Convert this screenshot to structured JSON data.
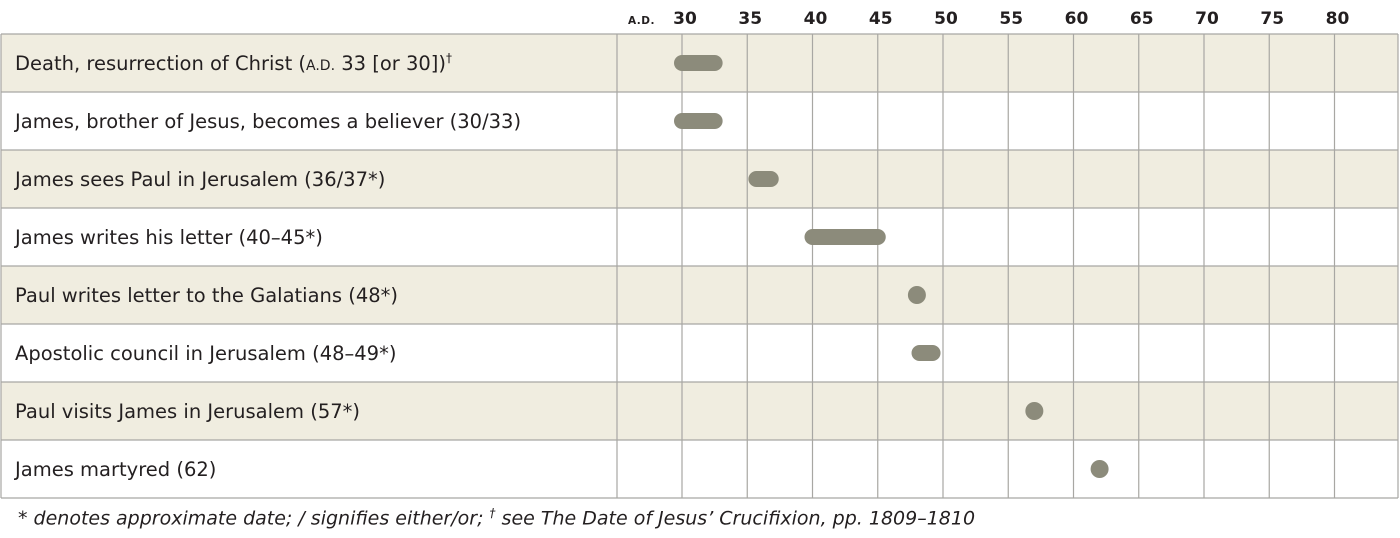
{
  "chart_data": {
    "type": "timeline",
    "axis_label": "A.D.",
    "ticks": [
      30,
      35,
      40,
      45,
      50,
      55,
      60,
      65,
      70,
      75,
      80
    ],
    "events": [
      {
        "label": "Death, resurrection of Christ (",
        "label_sc": "A.D.",
        "label_rest": " 33 [or 30])",
        "label_sup": "†",
        "start": 30,
        "end": 32.5
      },
      {
        "label": "James, brother of Jesus, becomes a believer (30/33)",
        "start": 30,
        "end": 32.5
      },
      {
        "label": "James sees Paul in Jerusalem (36/37*)",
        "start": 35.7,
        "end": 36.8
      },
      {
        "label": "James writes his letter (40–45*)",
        "start": 40,
        "end": 45
      },
      {
        "label": "Paul writes letter to the Galatians (48*)",
        "start": 48,
        "end": 48
      },
      {
        "label": "Apostolic council in Jerusalem (48–49*)",
        "start": 48.2,
        "end": 49.2
      },
      {
        "label": "Paul visits James in Jerusalem (57*)",
        "start": 57,
        "end": 57
      },
      {
        "label": "James martyred (62)",
        "start": 62,
        "end": 62
      }
    ],
    "colors": {
      "stripe": "#f0ede0",
      "bar": "#8c8b7b",
      "grid": "#a8a7a3"
    }
  },
  "footnote": {
    "part1": "* denotes approximate date; / signifies either/or; ",
    "sup": "†",
    "part2": " see The Date of Jesus’ Crucifixion, pp. 1809–1810"
  }
}
